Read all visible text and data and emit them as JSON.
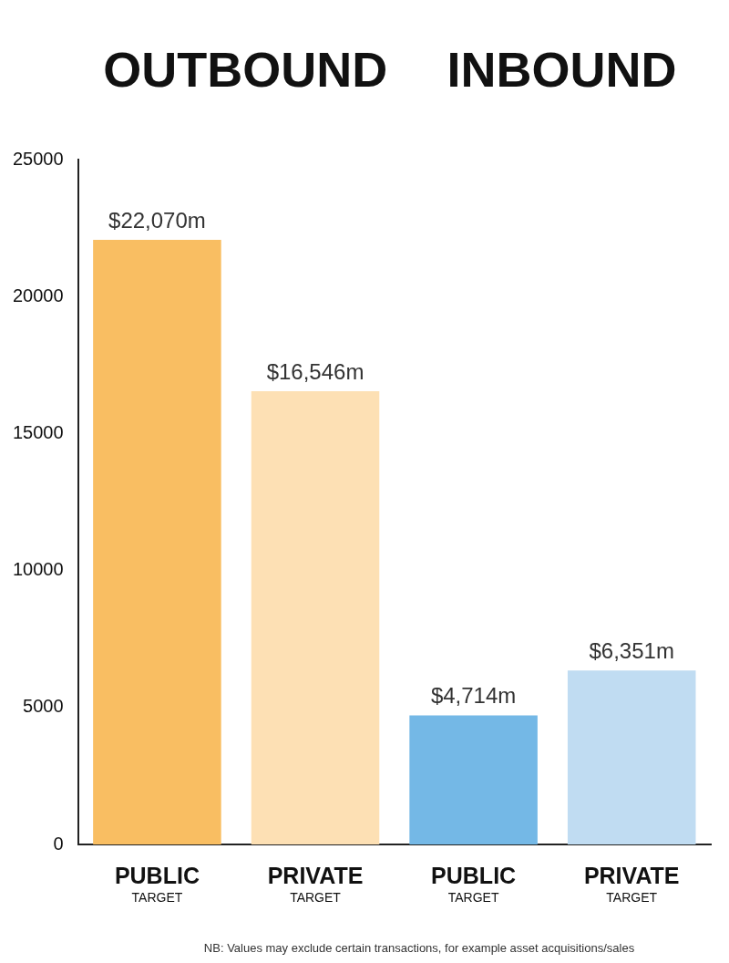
{
  "chart_data": {
    "type": "bar",
    "categories": [
      "PUBLIC\nTARGET",
      "PRIVATE\nTARGET",
      "PUBLIC\nTARGET",
      "PRIVATE\nTARGET"
    ],
    "values": [
      22070,
      16546,
      4714,
      6351
    ],
    "colors": [
      "#f9be62",
      "#fde0b4",
      "#74b8e6",
      "#c0dcf2"
    ],
    "value_labels": [
      "$22,070m",
      "$16,546m",
      "$4,714m",
      "$6,351m"
    ],
    "ylim": [
      0,
      25000
    ],
    "yticks": [
      0,
      5000,
      10000,
      15000,
      20000,
      25000
    ],
    "grid": false,
    "legend": false,
    "annotations": [
      "OUTBOUND",
      "INBOUND",
      "NB: Values may exclude certain transactions, for example asset acquisitions/sales"
    ]
  }
}
